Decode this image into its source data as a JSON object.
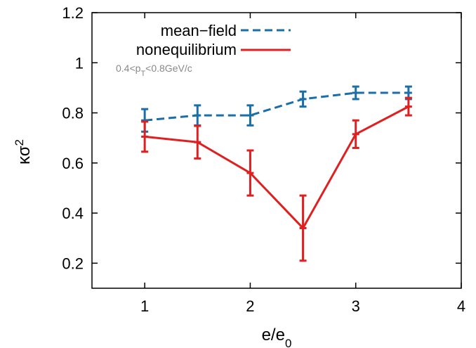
{
  "chart_data": {
    "type": "line",
    "title": "",
    "xlabel": {
      "main": "e/e",
      "sub": "0"
    },
    "ylabel": {
      "main": "κσ",
      "sup": "2"
    },
    "xlim": [
      0.5,
      4
    ],
    "ylim": [
      0.1,
      1.2
    ],
    "xticks": [
      1,
      2,
      3,
      4
    ],
    "yticks": [
      0.2,
      0.4,
      0.6,
      0.8,
      1,
      1.2
    ],
    "xtick_labels": [
      "1",
      "2",
      "3",
      "4"
    ],
    "ytick_labels": [
      "0.2",
      "0.4",
      "0.6",
      "0.8",
      "1",
      "1.2"
    ],
    "grid": false,
    "legend_position": "top-left",
    "annotation": {
      "pre": "0.4<p",
      "sub": "T",
      "post": "<0.8GeV/c"
    },
    "series": [
      {
        "name": "mean−field",
        "color": "#1a6fa8",
        "dash": true,
        "x": [
          1,
          1.5,
          2,
          2.5,
          3,
          3.5
        ],
        "y": [
          0.77,
          0.79,
          0.79,
          0.855,
          0.88,
          0.88
        ],
        "err": [
          0.045,
          0.04,
          0.04,
          0.03,
          0.025,
          0.025
        ]
      },
      {
        "name": "nonequilibrium",
        "color": "#e02020",
        "dash": false,
        "x": [
          1,
          1.5,
          2,
          2.5,
          3,
          3.5
        ],
        "y": [
          0.705,
          0.683,
          0.56,
          0.34,
          0.715,
          0.825
        ],
        "err": [
          0.06,
          0.065,
          0.09,
          0.13,
          0.055,
          0.035
        ]
      }
    ]
  }
}
